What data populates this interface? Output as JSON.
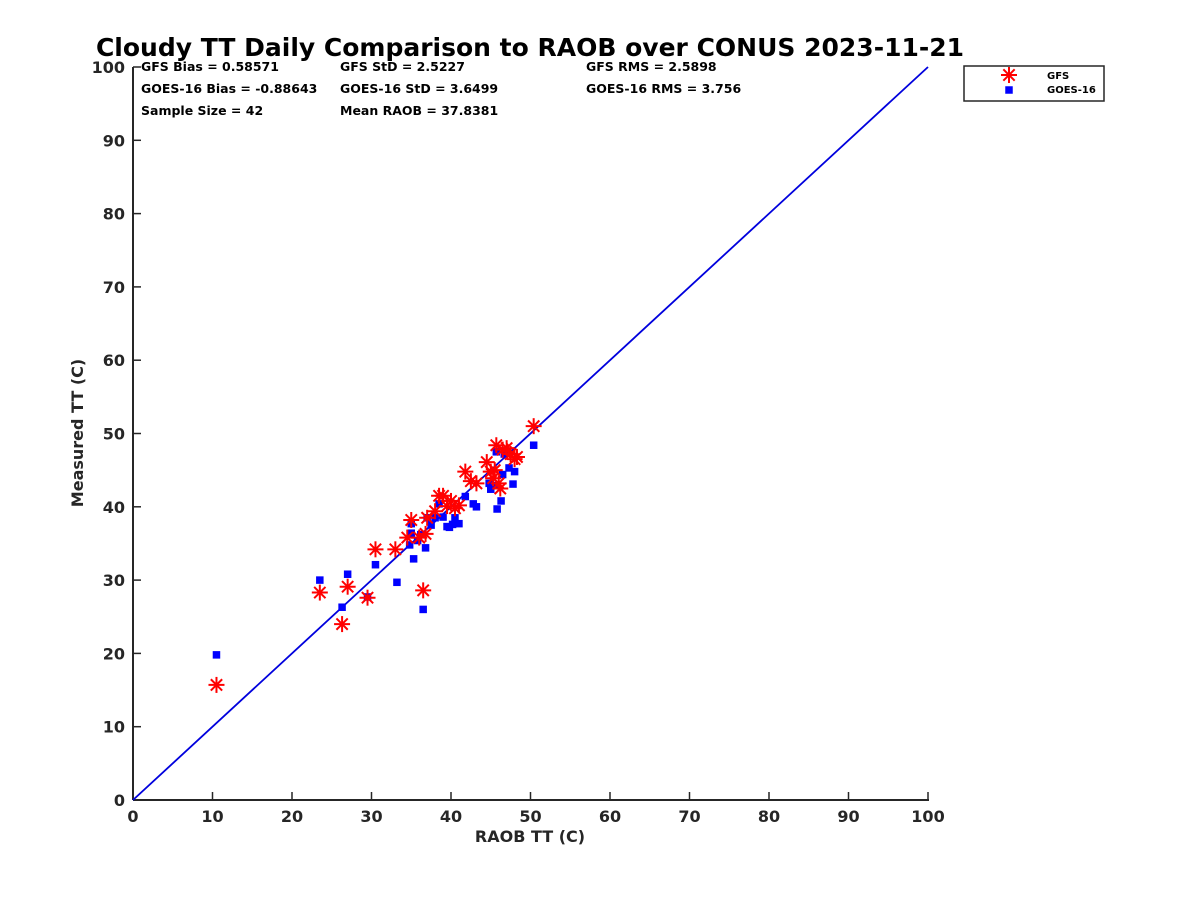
{
  "chart_data": {
    "type": "scatter",
    "title": "Cloudy TT Daily Comparison to RAOB over CONUS 2023-11-21",
    "xlabel": "RAOB TT (C)",
    "ylabel": "Measured TT (C)",
    "xlim": [
      0,
      100
    ],
    "ylim": [
      0,
      100
    ],
    "xticks": [
      "0",
      "10",
      "20",
      "30",
      "40",
      "50",
      "60",
      "70",
      "80",
      "90",
      "100"
    ],
    "yticks": [
      "0",
      "10",
      "20",
      "30",
      "40",
      "50",
      "60",
      "70",
      "80",
      "90",
      "100"
    ],
    "grid": false,
    "legend_position": "top-right-outside",
    "reference_line": {
      "name": "1:1 line",
      "color": "#0000dd",
      "from": [
        0,
        0
      ],
      "to": [
        100,
        100
      ]
    },
    "stats": {
      "gfs_bias": "GFS Bias = 0.58571",
      "gfs_std": "GFS StD = 2.5227",
      "gfs_rms": "GFS RMS = 2.5898",
      "goes_bias": "GOES-16 Bias = -0.88643",
      "goes_std": "GOES-16 StD = 3.6499",
      "goes_rms": "GOES-16 RMS = 3.756",
      "sample_size": "Sample Size = 42",
      "mean_raob": "Mean RAOB = 37.8381"
    },
    "series": [
      {
        "name": "GFS",
        "marker": "asterisk",
        "color": "#ff0000",
        "points": [
          [
            10.5,
            15.7
          ],
          [
            23.5,
            28.3
          ],
          [
            26.3,
            24.0
          ],
          [
            27.0,
            29.1
          ],
          [
            29.5,
            27.6
          ],
          [
            30.5,
            34.2
          ],
          [
            33.0,
            34.2
          ],
          [
            34.5,
            35.8
          ],
          [
            35.0,
            38.2
          ],
          [
            36.0,
            35.8
          ],
          [
            36.5,
            28.6
          ],
          [
            36.8,
            36.3
          ],
          [
            37.0,
            38.5
          ],
          [
            38.0,
            39.4
          ],
          [
            38.5,
            41.5
          ],
          [
            39.0,
            41.5
          ],
          [
            39.5,
            40.1
          ],
          [
            40.0,
            40.8
          ],
          [
            40.5,
            39.8
          ],
          [
            41.0,
            40.2
          ],
          [
            41.8,
            44.8
          ],
          [
            42.5,
            43.5
          ],
          [
            43.2,
            43.2
          ],
          [
            44.5,
            46.1
          ],
          [
            45.0,
            44.8
          ],
          [
            45.3,
            43.9
          ],
          [
            45.5,
            45.0
          ],
          [
            45.7,
            48.4
          ],
          [
            46.0,
            43.2
          ],
          [
            46.2,
            42.5
          ],
          [
            46.5,
            47.8
          ],
          [
            47.0,
            48.0
          ],
          [
            47.5,
            47.2
          ],
          [
            48.0,
            46.5
          ],
          [
            48.3,
            46.8
          ],
          [
            50.4,
            51.0
          ]
        ]
      },
      {
        "name": "GOES-16",
        "marker": "square",
        "color": "#0000ff",
        "points": [
          [
            10.5,
            19.8
          ],
          [
            23.5,
            30.0
          ],
          [
            26.3,
            26.3
          ],
          [
            27.0,
            30.8
          ],
          [
            29.5,
            27.7
          ],
          [
            30.5,
            32.1
          ],
          [
            33.2,
            29.7
          ],
          [
            34.8,
            34.8
          ],
          [
            35.0,
            37.7
          ],
          [
            35.0,
            36.4
          ],
          [
            35.3,
            32.9
          ],
          [
            35.8,
            35.4
          ],
          [
            36.2,
            36.2
          ],
          [
            36.5,
            26.0
          ],
          [
            36.8,
            34.4
          ],
          [
            37.0,
            38.5
          ],
          [
            37.5,
            37.5
          ],
          [
            38.0,
            38.5
          ],
          [
            38.5,
            40.4
          ],
          [
            39.0,
            38.6
          ],
          [
            39.5,
            37.3
          ],
          [
            39.8,
            37.2
          ],
          [
            40.2,
            37.6
          ],
          [
            40.5,
            38.5
          ],
          [
            41.0,
            37.7
          ],
          [
            41.8,
            41.4
          ],
          [
            42.8,
            40.4
          ],
          [
            43.2,
            40.0
          ],
          [
            44.8,
            43.2
          ],
          [
            45.0,
            42.4
          ],
          [
            45.5,
            42.9
          ],
          [
            45.7,
            47.5
          ],
          [
            45.8,
            39.7
          ],
          [
            46.3,
            40.8
          ],
          [
            46.5,
            44.4
          ],
          [
            46.7,
            47.2
          ],
          [
            47.3,
            45.3
          ],
          [
            47.8,
            43.1
          ],
          [
            48.0,
            44.8
          ],
          [
            50.4,
            48.4
          ]
        ]
      }
    ]
  }
}
